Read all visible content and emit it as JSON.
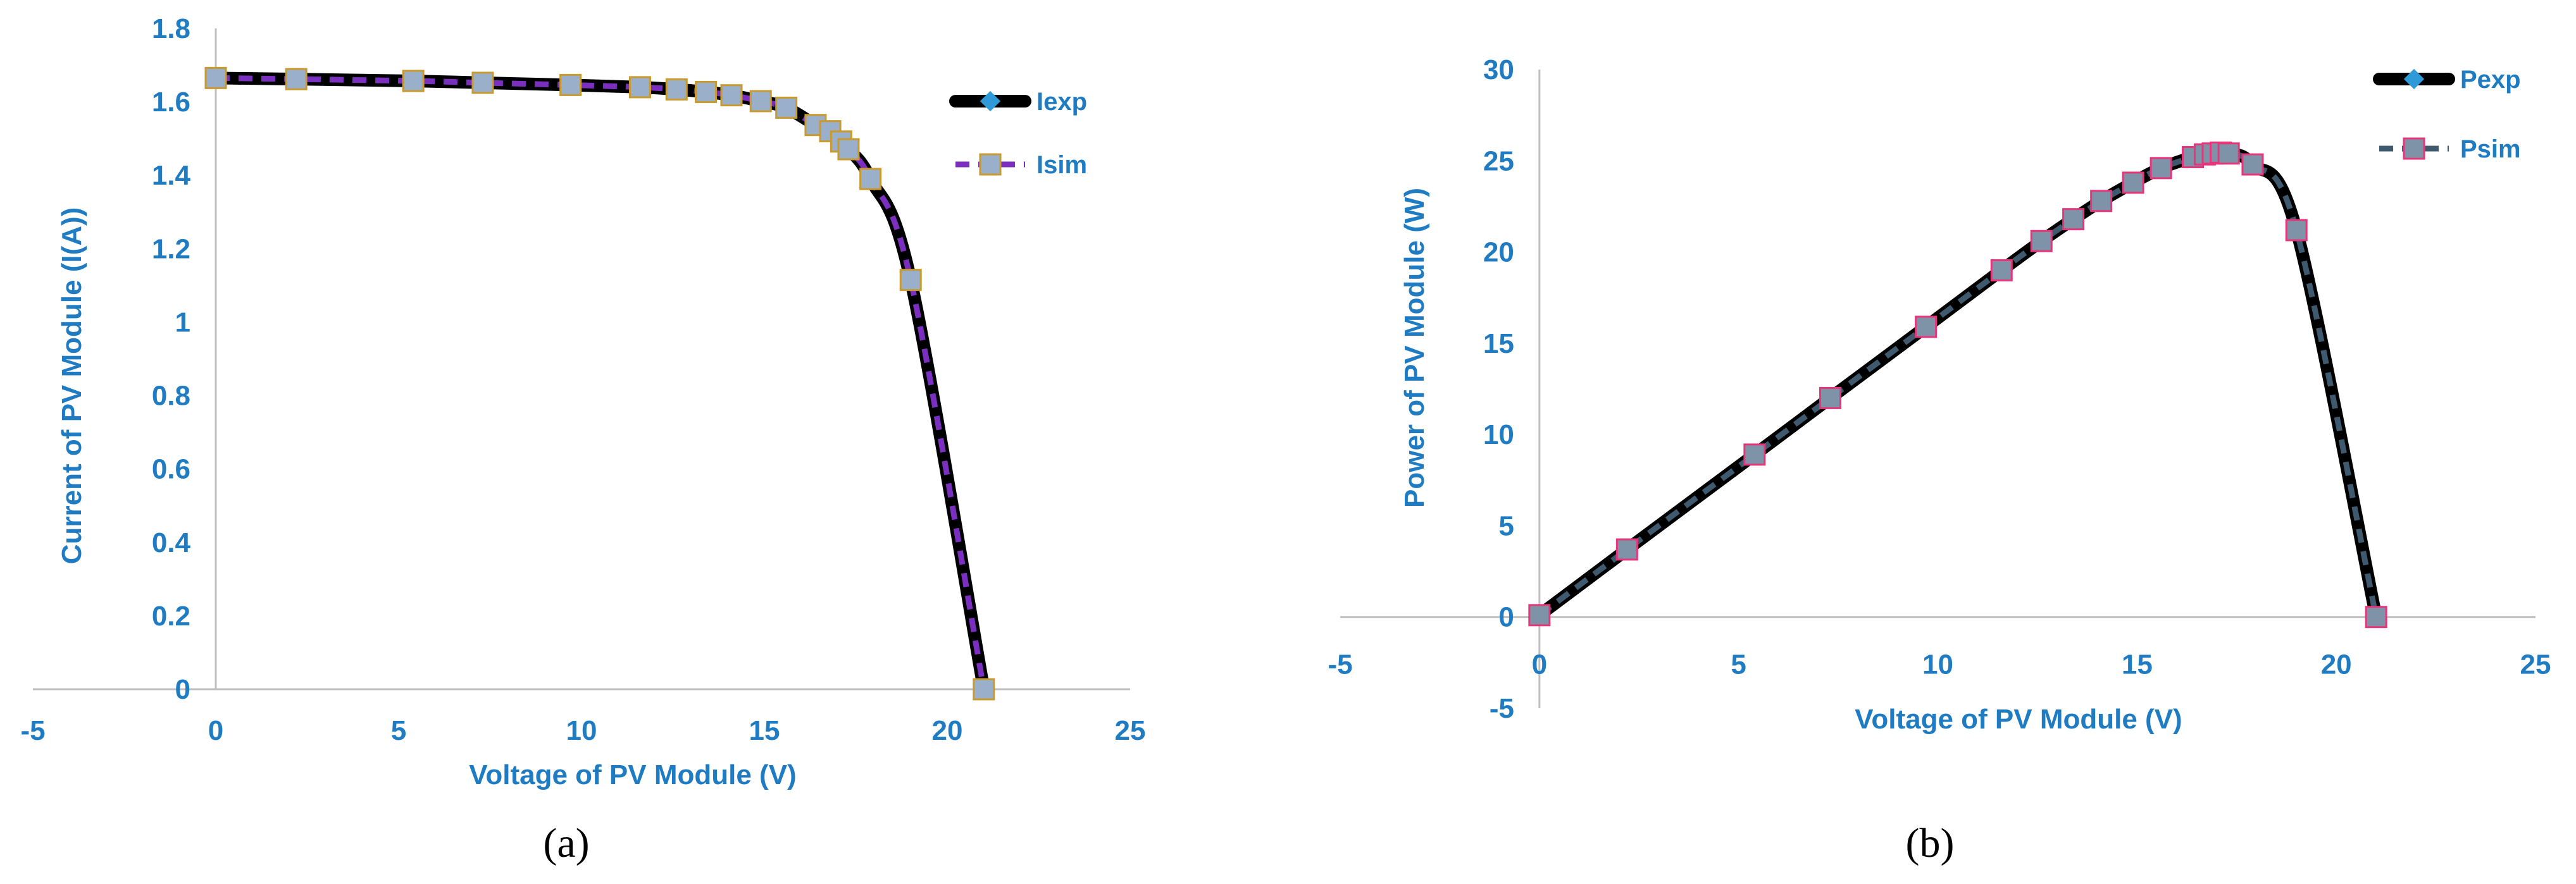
{
  "chart_data": [
    {
      "type": "line",
      "panel_label": "(a)",
      "xlabel": "Voltage of PV Module (V)",
      "ylabel": "Current of PV Module (I(A))",
      "xlim": [
        -5,
        25
      ],
      "ylim": [
        0,
        1.8
      ],
      "xticks": [
        -5,
        0,
        5,
        10,
        15,
        20,
        25
      ],
      "yticks": [
        0,
        0.2,
        0.4,
        0.6,
        0.8,
        1,
        1.2,
        1.4,
        1.6,
        1.8
      ],
      "ytick_labels": [
        "0",
        "0.2",
        "0.4",
        "0.6",
        "0.8",
        "1",
        "1.2",
        "1.4",
        "1.6",
        "1.8"
      ],
      "grid": false,
      "legend_position": "top-right",
      "series": [
        {
          "name": "Iexp",
          "style": "solid",
          "marker": "diamond",
          "color": "#000000",
          "marker_color": "#2E9BD8",
          "x": [
            0,
            2.2,
            5.4,
            7.3,
            9.7,
            11.6,
            12.6,
            13.4,
            14.1,
            14.9,
            15.6,
            16.4,
            16.8,
            17.1,
            17.3,
            17.9,
            19.0,
            21.0
          ],
          "y": [
            1.665,
            1.662,
            1.657,
            1.652,
            1.646,
            1.64,
            1.634,
            1.627,
            1.618,
            1.602,
            1.584,
            1.537,
            1.52,
            1.492,
            1.471,
            1.39,
            1.115,
            0
          ]
        },
        {
          "name": "Isim",
          "style": "dashed",
          "marker": "square",
          "color": "#7A2FBF",
          "marker_color": "#9AAFC9",
          "marker_edge": "#C99A2E",
          "x": [
            0,
            2.2,
            5.4,
            7.3,
            9.7,
            11.6,
            12.6,
            13.4,
            14.1,
            14.9,
            15.6,
            16.4,
            16.8,
            17.1,
            17.3,
            17.9,
            19.0,
            21.0
          ],
          "y": [
            1.665,
            1.662,
            1.657,
            1.652,
            1.646,
            1.64,
            1.634,
            1.627,
            1.618,
            1.602,
            1.584,
            1.537,
            1.52,
            1.492,
            1.471,
            1.39,
            1.115,
            0
          ]
        }
      ]
    },
    {
      "type": "line",
      "panel_label": "(b)",
      "xlabel": "Voltage of PV Module (V)",
      "ylabel": "Power of PV Module (W)",
      "xlim": [
        -5,
        25
      ],
      "ylim": [
        -5,
        30
      ],
      "xticks": [
        -5,
        0,
        5,
        10,
        15,
        20,
        25
      ],
      "yticks": [
        -5,
        0,
        5,
        10,
        15,
        20,
        25,
        30
      ],
      "ytick_labels": [
        "-5",
        "0",
        "5",
        "10",
        "15",
        "20",
        "25",
        "30"
      ],
      "grid": false,
      "legend_position": "top-right",
      "series": [
        {
          "name": "Pexp",
          "style": "solid",
          "marker": "diamond",
          "color": "#000000",
          "marker_color": "#2E9BD8",
          "x": [
            0,
            2.2,
            5.4,
            7.3,
            9.7,
            11.6,
            12.6,
            13.4,
            14.1,
            14.9,
            15.6,
            16.4,
            16.7,
            16.9,
            17.1,
            17.3,
            17.9,
            19.0,
            21.0
          ],
          "y": [
            0.1,
            3.7,
            8.9,
            12.0,
            15.9,
            19.0,
            20.6,
            21.8,
            22.8,
            23.8,
            24.6,
            25.2,
            25.35,
            25.4,
            25.45,
            25.4,
            24.8,
            21.2,
            0
          ]
        },
        {
          "name": "Psim",
          "style": "dashed",
          "marker": "square",
          "color": "#3F5A6E",
          "marker_color": "#7F93A8",
          "marker_edge": "#E8357A",
          "x": [
            0,
            2.2,
            5.4,
            7.3,
            9.7,
            11.6,
            12.6,
            13.4,
            14.1,
            14.9,
            15.6,
            16.4,
            16.7,
            16.9,
            17.1,
            17.3,
            17.9,
            19.0,
            21.0
          ],
          "y": [
            0.1,
            3.7,
            8.9,
            12.0,
            15.9,
            19.0,
            20.6,
            21.8,
            22.8,
            23.8,
            24.6,
            25.2,
            25.35,
            25.4,
            25.45,
            25.4,
            24.8,
            21.2,
            0
          ]
        }
      ]
    }
  ]
}
